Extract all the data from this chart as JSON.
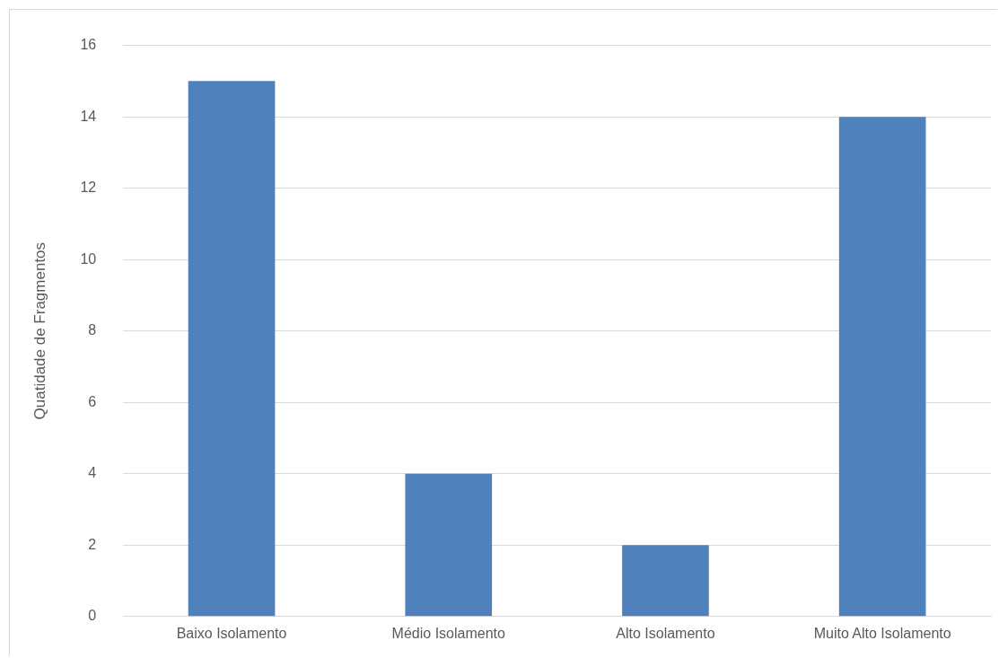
{
  "chart_data": {
    "type": "bar",
    "ylabel": "Quatidade de Fragmentos",
    "categories": [
      "Baixo Isolamento",
      "Médio Isolamento",
      "Alto Isolamento",
      "Muito Alto Isolamento"
    ],
    "values": [
      15,
      4,
      2,
      14
    ],
    "color": "#4f81bd",
    "ylim": [
      0,
      16
    ],
    "yticks": [
      0,
      2,
      4,
      6,
      8,
      10,
      12,
      14,
      16
    ],
    "grid": "y"
  }
}
